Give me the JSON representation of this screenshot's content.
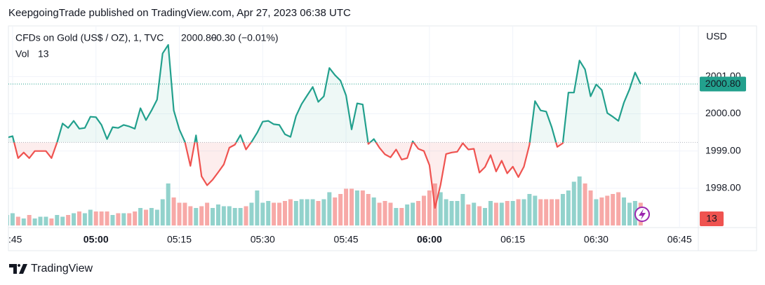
{
  "chart_data": {
    "type": "baseline",
    "attribution": "KeepgoingTrade published on TradingView.com, Apr 27, 2023 06:38 UTC",
    "title": "CFDs on Gold (US$ / OZ), 1, TVC",
    "last_price_label": "2000.80",
    "change_label": "−0.30 (−0.01%)",
    "y_unit": "USD",
    "baseline": 1999.23,
    "up_color": "#22a08d",
    "down_color": "#ef5350",
    "x": [
      "04:44",
      "04:45",
      "04:46",
      "04:47",
      "04:48",
      "04:49",
      "04:50",
      "04:51",
      "04:52",
      "04:53",
      "04:54",
      "04:55",
      "04:56",
      "04:57",
      "04:58",
      "04:59",
      "05:00",
      "05:01",
      "05:02",
      "05:03",
      "05:04",
      "05:05",
      "05:06",
      "05:07",
      "05:08",
      "05:09",
      "05:10",
      "05:11",
      "05:12",
      "05:13",
      "05:14",
      "05:15",
      "05:16",
      "05:17",
      "05:18",
      "05:19",
      "05:20",
      "05:21",
      "05:22",
      "05:23",
      "05:24",
      "05:25",
      "05:26",
      "05:27",
      "05:28",
      "05:29",
      "05:30",
      "05:31",
      "05:32",
      "05:33",
      "05:34",
      "05:35",
      "05:36",
      "05:37",
      "05:38",
      "05:39",
      "05:40",
      "05:41",
      "05:42",
      "05:43",
      "05:44",
      "05:45",
      "05:46",
      "05:47",
      "05:48",
      "05:49",
      "05:50",
      "05:51",
      "05:52",
      "05:53",
      "05:54",
      "05:55",
      "05:56",
      "05:57",
      "05:58",
      "05:59",
      "06:00",
      "06:01",
      "06:02",
      "06:03",
      "06:04",
      "06:05",
      "06:06",
      "06:07",
      "06:08",
      "06:09",
      "06:10",
      "06:11",
      "06:12",
      "06:13",
      "06:14",
      "06:15",
      "06:16",
      "06:17",
      "06:18",
      "06:19",
      "06:20",
      "06:21",
      "06:22",
      "06:23",
      "06:24",
      "06:25",
      "06:26",
      "06:27",
      "06:28",
      "06:29",
      "06:30",
      "06:31",
      "06:32",
      "06:33",
      "06:34",
      "06:35",
      "06:36",
      "06:37",
      "06:38"
    ],
    "values": [
      1999.36,
      1999.4,
      1998.81,
      1998.96,
      1998.81,
      1999.0,
      1999.0,
      1999.0,
      1998.81,
      1999.23,
      1999.74,
      1999.62,
      1999.81,
      1999.6,
      1999.62,
      1999.92,
      1999.91,
      1999.7,
      1999.32,
      1999.64,
      1999.62,
      1999.7,
      1999.66,
      1999.6,
      2000.15,
      1999.83,
      2000.09,
      2000.38,
      2001.62,
      2001.85,
      2000.09,
      1999.58,
      1999.25,
      1998.6,
      1999.42,
      1998.32,
      1998.08,
      1998.23,
      1998.43,
      1998.64,
      1999.09,
      1999.17,
      1999.43,
      1999.04,
      1999.25,
      1999.49,
      1999.79,
      1999.81,
      1999.72,
      1999.7,
      1999.45,
      1999.38,
      1999.94,
      2000.26,
      2000.49,
      2000.72,
      2000.32,
      2000.47,
      2001.23,
      2001.04,
      2000.89,
      2000.49,
      1999.58,
      2000.28,
      2000.25,
      1999.19,
      1999.32,
      1999.09,
      1998.91,
      1998.83,
      1999.04,
      1998.77,
      1998.81,
      1999.26,
      1999.06,
      1999.0,
      1998.62,
      1997.47,
      1998.09,
      1998.92,
      1998.96,
      1998.98,
      1999.21,
      1999.04,
      1999.06,
      1998.42,
      1998.57,
      1998.89,
      1998.45,
      1998.74,
      1998.4,
      1998.58,
      1998.3,
      1998.58,
      1999.17,
      2000.34,
      2000.09,
      2000.06,
      1999.64,
      1999.11,
      1999.21,
      2000.57,
      2000.57,
      2001.43,
      2001.19,
      2000.47,
      2000.79,
      2000.64,
      2000.02,
      1999.92,
      1999.81,
      2000.3,
      2000.66,
      2001.11,
      2000.8
    ],
    "volume": {
      "name": "Vol",
      "up_color": "#92d2cc",
      "down_color": "#f7a9a7",
      "values": [
        6,
        7,
        5,
        4,
        6,
        4,
        5,
        5,
        4,
        6,
        5,
        6,
        7,
        8,
        7,
        9,
        8,
        8,
        8,
        6,
        7,
        7,
        7,
        8,
        10,
        9,
        10,
        9,
        15,
        24,
        16,
        13,
        13,
        11,
        10,
        11,
        13,
        10,
        12,
        11,
        11,
        10,
        10,
        11,
        13,
        20,
        13,
        14,
        13,
        13,
        14,
        15,
        14,
        15,
        15,
        15,
        14,
        15,
        19,
        16,
        18,
        21,
        21,
        20,
        20,
        18,
        16,
        13,
        14,
        13,
        10,
        10,
        12,
        13,
        14,
        17,
        20,
        24,
        19,
        15,
        14,
        14,
        18,
        12,
        13,
        11,
        10,
        14,
        13,
        13,
        14,
        14,
        15,
        15,
        18,
        17,
        15,
        15,
        15,
        15,
        18,
        20,
        25,
        28,
        24,
        20,
        15,
        16,
        17,
        18,
        19,
        16,
        13,
        14,
        13
      ]
    },
    "xlim": [
      "04:44",
      "06:48"
    ],
    "xticks": [
      {
        "value": "04:45",
        "label": ":45"
      },
      "05:00",
      "05:15",
      "05:30",
      "05:45",
      "06:00",
      "06:15",
      "06:30",
      "06:45"
    ],
    "ylim": [
      1997.0,
      2002.36
    ],
    "yticks": [
      {
        "value": 1998,
        "label": "1998.00"
      },
      {
        "value": 1999,
        "label": "1999.00"
      },
      {
        "value": 2000,
        "label": "2000.00"
      },
      {
        "value": 2001,
        "label": "2001.00"
      }
    ],
    "grid": true,
    "footer": "TradingView"
  }
}
